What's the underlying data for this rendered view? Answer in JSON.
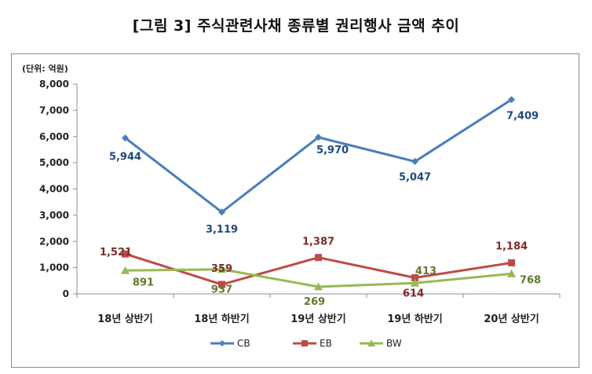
{
  "title": "[그림 3] 주식관련사채 종류별 권리행사 금액 추이",
  "chart_data": {
    "type": "line",
    "unit_label": "(단위: 억원)",
    "categories": [
      "18년 상반기",
      "18년 하반기",
      "19년 상반기",
      "19년 하반기",
      "20년 상반기"
    ],
    "ylim": [
      0,
      8000
    ],
    "yticks": [
      "0",
      "1,000",
      "2,000",
      "3,000",
      "4,000",
      "5,000",
      "6,000",
      "7,000",
      "8,000"
    ],
    "grid": false,
    "legend_position": "bottom",
    "series": [
      {
        "name": "CB",
        "color": "#4a7ebb",
        "marker": "diamond",
        "values": [
          5944,
          3119,
          5970,
          5047,
          7409
        ],
        "labels": [
          "5,944",
          "3,119",
          "5,970",
          "5,047",
          "7,409"
        ]
      },
      {
        "name": "EB",
        "color": "#be4b48",
        "marker": "square",
        "values": [
          1521,
          359,
          1387,
          614,
          1184
        ],
        "labels": [
          "1,521",
          "359",
          "1,387",
          "614",
          "1,184"
        ]
      },
      {
        "name": "BW",
        "color": "#98b954",
        "marker": "triangle",
        "values": [
          891,
          937,
          269,
          413,
          768
        ],
        "labels": [
          "891",
          "937",
          "269",
          "413",
          "768"
        ]
      }
    ]
  }
}
